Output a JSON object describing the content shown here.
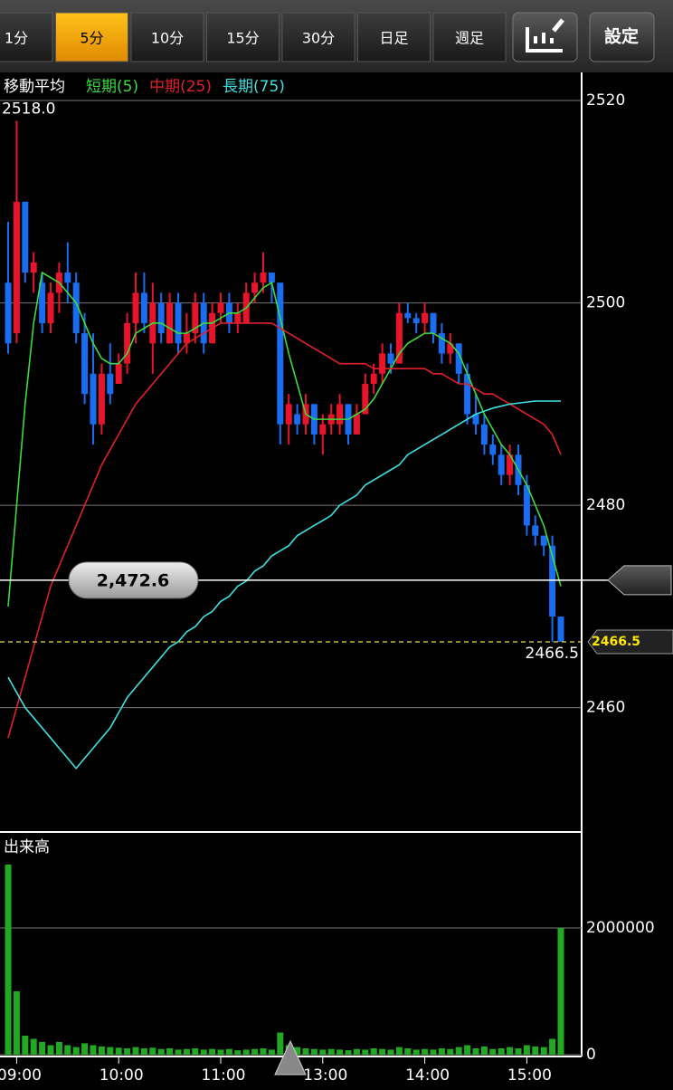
{
  "toolbar": {
    "tabs": [
      "1分",
      "5分",
      "10分",
      "15分",
      "30分",
      "日足",
      "週足"
    ],
    "selected_index": 1,
    "settings": "設定"
  },
  "chart_data": [
    {
      "type": "candlestick",
      "title": "移動平均",
      "series": [
        {
          "name": "短期(5)",
          "color": "#3cdc3c",
          "values": [
            2470,
            2480,
            2490,
            2498,
            2503,
            2502.5,
            2502,
            2501,
            2500,
            2498,
            2496,
            2494.5,
            2494,
            2494,
            2495,
            2497,
            2497.5,
            2498,
            2498,
            2497.5,
            2497,
            2497,
            2497.5,
            2498,
            2498,
            2498.5,
            2499,
            2499,
            2499.5,
            2500.5,
            2501.5,
            2502,
            2498.5,
            2495,
            2492,
            2489,
            2488.5,
            2488.5,
            2488.5,
            2488.5,
            2488.5,
            2489,
            2489.5,
            2490.5,
            2492,
            2493.5,
            2495,
            2496,
            2496.5,
            2497,
            2497,
            2496.5,
            2496,
            2495,
            2493,
            2491,
            2489,
            2487.5,
            2486,
            2485,
            2483.5,
            2482,
            2480,
            2478,
            2475,
            2472
          ]
        },
        {
          "name": "中期(25)",
          "color": "#e0202a",
          "values": [
            2457,
            2460,
            2463,
            2466,
            2469,
            2472,
            2474,
            2476,
            2478,
            2480,
            2482,
            2484,
            2485.5,
            2487,
            2488.5,
            2490,
            2491,
            2492,
            2493,
            2494,
            2495,
            2496,
            2496.5,
            2497,
            2497.5,
            2498,
            2498,
            2498,
            2498,
            2498,
            2498,
            2498,
            2497.5,
            2497,
            2496.5,
            2496,
            2495.5,
            2495,
            2494.5,
            2494,
            2494,
            2494,
            2494,
            2493.5,
            2493.5,
            2493.5,
            2493.5,
            2493.5,
            2493.5,
            2493.5,
            2493,
            2493,
            2492.5,
            2492,
            2492,
            2491.5,
            2491,
            2491,
            2490.5,
            2490,
            2489.5,
            2489,
            2488.5,
            2488,
            2487,
            2485
          ]
        },
        {
          "name": "長期(75)",
          "color": "#40e0e0",
          "values": [
            2463,
            2461.5,
            2460,
            2459,
            2458,
            2457,
            2456,
            2455,
            2454,
            2455,
            2456,
            2457,
            2458,
            2459.5,
            2461,
            2462,
            2463,
            2464,
            2465,
            2466,
            2466.5,
            2467.5,
            2468,
            2469,
            2469.5,
            2470.5,
            2471,
            2472,
            2472.5,
            2473.5,
            2474,
            2475,
            2475.5,
            2476,
            2477,
            2477.5,
            2478,
            2478.5,
            2479,
            2480,
            2480.5,
            2481,
            2482,
            2482.5,
            2483,
            2483.5,
            2484,
            2485,
            2485.5,
            2486,
            2486.5,
            2487,
            2487.5,
            2488,
            2488.5,
            2489,
            2489.3,
            2489.6,
            2489.8,
            2490,
            2490.1,
            2490.2,
            2490.3,
            2490.3,
            2490.3,
            2490.3
          ]
        }
      ],
      "open": [
        2502,
        2497,
        2510,
        2503,
        2502,
        2498,
        2501,
        2503,
        2502,
        2497,
        2493,
        2488,
        2493,
        2492,
        2494,
        2498,
        2501,
        2496,
        2500,
        2496,
        2500,
        2496,
        2497,
        2500,
        2496,
        2499,
        2500,
        2498,
        2498,
        2501,
        2502,
        2503,
        2502,
        2488,
        2489,
        2488,
        2490,
        2487,
        2488,
        2488,
        2490,
        2487,
        2489,
        2492,
        2493,
        2495,
        2494,
        2499,
        2498.5,
        2498,
        2499,
        2497,
        2495,
        2496,
        2493,
        2489,
        2488,
        2486,
        2485,
        2483,
        2485,
        2482,
        2478,
        2477,
        2476,
        2469
      ],
      "high": [
        2508,
        2518,
        2510,
        2505,
        2503,
        2502,
        2504,
        2506,
        2503,
        2499,
        2497,
        2494,
        2496,
        2495,
        2499,
        2503,
        2503,
        2502,
        2501,
        2501,
        2501,
        2499,
        2501,
        2501,
        2500,
        2501,
        2501,
        2500,
        2502,
        2503,
        2505,
        2503,
        2502,
        2491,
        2490,
        2491,
        2490,
        2489,
        2490,
        2491,
        2490,
        2490,
        2493,
        2494,
        2496,
        2496,
        2500,
        2500,
        2499,
        2500,
        2499,
        2498,
        2497,
        2496,
        2494,
        2491,
        2489,
        2487,
        2486,
        2486,
        2486,
        2483,
        2479,
        2477,
        2477,
        2469
      ],
      "low": [
        2495,
        2496,
        2502,
        2501,
        2497,
        2497,
        2499,
        2500,
        2496,
        2490,
        2486,
        2487,
        2490,
        2492,
        2493,
        2496,
        2497,
        2493,
        2496,
        2496,
        2495,
        2495,
        2496,
        2495,
        2496,
        2498,
        2497,
        2497,
        2498,
        2500,
        2501,
        2500,
        2486,
        2486,
        2487,
        2487,
        2486,
        2485,
        2487,
        2487,
        2486,
        2487,
        2489,
        2491,
        2492,
        2493,
        2494,
        2498,
        2497,
        2497,
        2496,
        2494,
        2494,
        2492,
        2488,
        2487,
        2485,
        2484,
        2482,
        2482,
        2481,
        2477,
        2476,
        2475,
        2466.5,
        2466.5
      ],
      "close": [
        2496,
        2510,
        2503,
        2504,
        2498,
        2501,
        2503,
        2502,
        2497,
        2491,
        2488,
        2493,
        2491,
        2494,
        2498,
        2501,
        2498,
        2500,
        2497,
        2500,
        2496,
        2497,
        2500,
        2496,
        2499,
        2500,
        2498,
        2499,
        2501,
        2502,
        2503,
        2502,
        2488,
        2490,
        2488,
        2490,
        2487,
        2488,
        2489,
        2490,
        2487,
        2489,
        2492,
        2493,
        2495,
        2494,
        2499,
        2498.5,
        2498,
        2499,
        2497,
        2495,
        2496,
        2493,
        2489,
        2488,
        2486,
        2485,
        2483,
        2485,
        2482,
        2478,
        2477,
        2476,
        2469,
        2466.5
      ],
      "up_color": "#e8142c",
      "down_color": "#1a6cf0",
      "ylim": [
        2447.8,
        2522.6
      ],
      "yticks": [
        2460,
        2480,
        2500,
        2520
      ],
      "grid": true,
      "high_label": {
        "value": 2518,
        "label": "2518.0"
      },
      "crosshair": {
        "value": 2472.6,
        "label": "2,472.6"
      },
      "last_price": {
        "value": 2466.5,
        "label": "2466.5"
      }
    },
    {
      "type": "bar",
      "title": "出来高",
      "categories": [
        null,
        "09:00",
        null,
        null,
        null,
        null,
        null,
        null,
        null,
        null,
        null,
        null,
        null,
        "10:00",
        null,
        null,
        null,
        null,
        null,
        null,
        null,
        null,
        null,
        null,
        null,
        "11:00",
        null,
        null,
        null,
        null,
        null,
        null,
        null,
        null,
        null,
        null,
        null,
        "13:00",
        null,
        null,
        null,
        null,
        null,
        null,
        null,
        null,
        null,
        null,
        null,
        "14:00",
        null,
        null,
        null,
        null,
        null,
        null,
        null,
        null,
        null,
        null,
        null,
        "15:00",
        null,
        null,
        null,
        null
      ],
      "values": [
        3000000,
        1000000,
        300000,
        250000,
        200000,
        150000,
        200000,
        150000,
        120000,
        180000,
        150000,
        130000,
        120000,
        110000,
        100000,
        120000,
        100000,
        110000,
        90000,
        100000,
        80000,
        90000,
        100000,
        80000,
        90000,
        80000,
        90000,
        70000,
        80000,
        90000,
        100000,
        80000,
        350000,
        150000,
        120000,
        100000,
        90000,
        80000,
        90000,
        80000,
        70000,
        90000,
        80000,
        100000,
        90000,
        80000,
        120000,
        100000,
        80000,
        90000,
        80000,
        100000,
        90000,
        120000,
        150000,
        100000,
        130000,
        90000,
        100000,
        120000,
        100000,
        150000,
        130000,
        120000,
        250000,
        2000000
      ],
      "color": "#22a822",
      "ylim": [
        0,
        3500000
      ],
      "yticks": [
        0,
        2000000
      ],
      "grid": true
    }
  ]
}
